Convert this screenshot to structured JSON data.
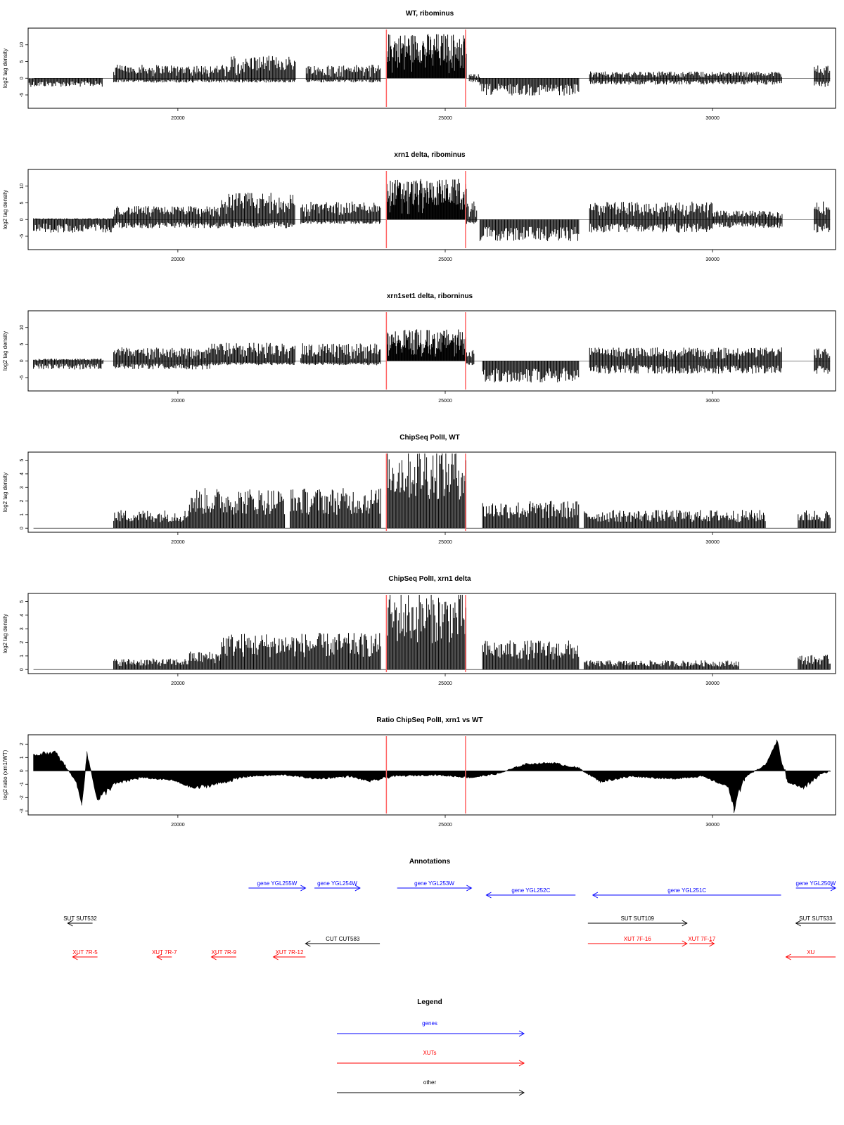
{
  "chart_data": [
    {
      "type": "bar",
      "title": "WT, ribominus",
      "ylabel": "log2 tag density",
      "xlim": [
        17200,
        32300
      ],
      "ylim": [
        -9,
        15
      ],
      "yticks": [
        -5,
        0,
        5,
        10
      ],
      "xticks": [
        20000,
        25000,
        30000
      ],
      "markers": [
        23900,
        25380
      ],
      "segments": [
        {
          "from": 17200,
          "to": 18600,
          "pos": 0,
          "neg": 2
        },
        {
          "from": 18800,
          "to": 21000,
          "pos": 3,
          "neg": 1
        },
        {
          "from": 21000,
          "to": 22200,
          "pos": 5,
          "neg": 1
        },
        {
          "from": 22400,
          "to": 23800,
          "pos": 3,
          "neg": 1
        },
        {
          "from": 23900,
          "to": 25400,
          "pos": 10,
          "neg": 0
        },
        {
          "from": 25450,
          "to": 25650,
          "pos": 1,
          "neg": 1
        },
        {
          "from": 25650,
          "to": 27500,
          "pos": 0,
          "neg": 4
        },
        {
          "from": 27700,
          "to": 31300,
          "pos": 1.5,
          "neg": 1.5
        },
        {
          "from": 31900,
          "to": 32200,
          "pos": 3,
          "neg": 2
        }
      ]
    },
    {
      "type": "bar",
      "title": "xrn1 delta, ribominus",
      "ylabel": "log2 tag density",
      "xlim": [
        17200,
        32300
      ],
      "ylim": [
        -9,
        15
      ],
      "yticks": [
        -5,
        0,
        5,
        10
      ],
      "xticks": [
        20000,
        25000,
        30000
      ],
      "markers": [
        23900,
        25380
      ],
      "segments": [
        {
          "from": 17300,
          "to": 18800,
          "pos": 0.3,
          "neg": 3
        },
        {
          "from": 18800,
          "to": 20800,
          "pos": 3,
          "neg": 2
        },
        {
          "from": 20800,
          "to": 22200,
          "pos": 6,
          "neg": 2
        },
        {
          "from": 22300,
          "to": 23800,
          "pos": 4,
          "neg": 1
        },
        {
          "from": 23900,
          "to": 25400,
          "pos": 9,
          "neg": 0
        },
        {
          "from": 25400,
          "to": 25600,
          "pos": 4,
          "neg": 1
        },
        {
          "from": 25650,
          "to": 27500,
          "pos": 0,
          "neg": 5
        },
        {
          "from": 27700,
          "to": 30000,
          "pos": 4,
          "neg": 3
        },
        {
          "from": 30000,
          "to": 31300,
          "pos": 2,
          "neg": 2
        },
        {
          "from": 31900,
          "to": 32200,
          "pos": 4,
          "neg": 3
        }
      ]
    },
    {
      "type": "bar",
      "title": "xrn1set1 delta, riborninus",
      "ylabel": "log2 tag density",
      "xlim": [
        17200,
        32300
      ],
      "ylim": [
        -9,
        15
      ],
      "yticks": [
        -5,
        0,
        5,
        10
      ],
      "xticks": [
        20000,
        25000,
        30000
      ],
      "markers": [
        23900,
        25380
      ],
      "segments": [
        {
          "from": 17300,
          "to": 18600,
          "pos": 0.5,
          "neg": 2
        },
        {
          "from": 18800,
          "to": 20600,
          "pos": 3,
          "neg": 2
        },
        {
          "from": 20600,
          "to": 22200,
          "pos": 4,
          "neg": 1
        },
        {
          "from": 22300,
          "to": 23800,
          "pos": 4,
          "neg": 1
        },
        {
          "from": 23900,
          "to": 25400,
          "pos": 7,
          "neg": 0
        },
        {
          "from": 25400,
          "to": 25550,
          "pos": 3,
          "neg": 1
        },
        {
          "from": 25700,
          "to": 27500,
          "pos": 0,
          "neg": 5
        },
        {
          "from": 27700,
          "to": 31300,
          "pos": 3,
          "neg": 3
        },
        {
          "from": 31900,
          "to": 32200,
          "pos": 3,
          "neg": 3
        }
      ]
    },
    {
      "type": "bar",
      "title": "ChipSeq PolII, WT",
      "ylabel": "log2 tag density",
      "xlim": [
        17200,
        32300
      ],
      "ylim": [
        -0.3,
        5.6
      ],
      "yticks": [
        0,
        1,
        2,
        3,
        4,
        5
      ],
      "xticks": [
        20000,
        25000,
        30000
      ],
      "markers": [
        23900,
        25380
      ],
      "segments": [
        {
          "from": 18800,
          "to": 20200,
          "pos": 1,
          "neg": 0
        },
        {
          "from": 20200,
          "to": 22000,
          "pos": 2.2,
          "neg": 0
        },
        {
          "from": 22100,
          "to": 23800,
          "pos": 2.2,
          "neg": 0
        },
        {
          "from": 23900,
          "to": 25400,
          "pos": 4.6,
          "neg": 0
        },
        {
          "from": 25700,
          "to": 27500,
          "pos": 1.5,
          "neg": 0
        },
        {
          "from": 27600,
          "to": 31000,
          "pos": 1,
          "neg": 0
        },
        {
          "from": 31600,
          "to": 32200,
          "pos": 1,
          "neg": 0
        }
      ]
    },
    {
      "type": "bar",
      "title": "ChipSeq PolII, xrn1 delta",
      "ylabel": "log2 tag density",
      "xlim": [
        17200,
        32300
      ],
      "ylim": [
        -0.3,
        5.6
      ],
      "yticks": [
        0,
        1,
        2,
        3,
        4,
        5
      ],
      "xticks": [
        20000,
        25000,
        30000
      ],
      "markers": [
        23900,
        25380
      ],
      "segments": [
        {
          "from": 18800,
          "to": 20200,
          "pos": 0.6,
          "neg": 0
        },
        {
          "from": 20200,
          "to": 20800,
          "pos": 1,
          "neg": 0
        },
        {
          "from": 20800,
          "to": 22200,
          "pos": 2,
          "neg": 0
        },
        {
          "from": 22200,
          "to": 23800,
          "pos": 2,
          "neg": 0
        },
        {
          "from": 23900,
          "to": 25400,
          "pos": 4.3,
          "neg": 0
        },
        {
          "from": 25700,
          "to": 27500,
          "pos": 1.6,
          "neg": 0
        },
        {
          "from": 27600,
          "to": 30500,
          "pos": 0.5,
          "neg": 0
        },
        {
          "from": 31600,
          "to": 32200,
          "pos": 0.8,
          "neg": 0
        }
      ]
    },
    {
      "type": "bar",
      "title": "Ratio ChipSeq PolII, xrn1 vs WT",
      "ylabel": "log2 ratio (xrn1/WT)",
      "xlim": [
        17200,
        32300
      ],
      "ylim": [
        -3.3,
        2.7
      ],
      "yticks": [
        -3,
        -2,
        -1,
        0,
        1,
        2
      ],
      "xticks": [
        20000,
        25000,
        30000
      ],
      "markers": [
        23900,
        25380
      ],
      "ratio_points": [
        [
          17300,
          1.2
        ],
        [
          17700,
          1.4
        ],
        [
          17900,
          0.3
        ],
        [
          18100,
          -0.8
        ],
        [
          18200,
          -2.5
        ],
        [
          18300,
          1.3
        ],
        [
          18500,
          -2.2
        ],
        [
          18800,
          -1.0
        ],
        [
          19300,
          -0.5
        ],
        [
          19900,
          -0.7
        ],
        [
          20300,
          -1.3
        ],
        [
          20700,
          -1.0
        ],
        [
          21300,
          -0.4
        ],
        [
          22000,
          -0.3
        ],
        [
          22600,
          -0.6
        ],
        [
          23200,
          -0.4
        ],
        [
          23600,
          -0.8
        ],
        [
          24000,
          -0.4
        ],
        [
          24800,
          -0.3
        ],
        [
          25500,
          -0.5
        ],
        [
          26000,
          -0.2
        ],
        [
          26500,
          0.5
        ],
        [
          27000,
          0.6
        ],
        [
          27500,
          0.2
        ],
        [
          27900,
          -0.8
        ],
        [
          28500,
          -0.4
        ],
        [
          29200,
          -0.6
        ],
        [
          29800,
          -0.4
        ],
        [
          30300,
          -1.2
        ],
        [
          30400,
          -2.8
        ],
        [
          30600,
          -0.5
        ],
        [
          31000,
          0.5
        ],
        [
          31200,
          2.2
        ],
        [
          31400,
          -0.8
        ],
        [
          31700,
          -1.3
        ],
        [
          32000,
          -0.3
        ],
        [
          32200,
          0
        ]
      ]
    }
  ],
  "annotations": {
    "title": "Annotations",
    "xlim": [
      17200,
      32300
    ],
    "features": [
      {
        "label": "gene YGL255W",
        "from": 18450,
        "to": 19600,
        "row": 1,
        "type": "gene",
        "strand": "+"
      },
      {
        "label": "gene YGL254W",
        "from": 19780,
        "to": 20700,
        "row": 1,
        "type": "gene",
        "strand": "+"
      },
      {
        "label": "gene YGL253W",
        "from": 21450,
        "to": 22950,
        "row": 1,
        "type": "gene",
        "strand": "+"
      },
      {
        "label": "gene YGL252C",
        "from": 23250,
        "to": 25050,
        "row": 2,
        "type": "gene",
        "strand": "-"
      },
      {
        "label": "gene YGL251C",
        "from": 25400,
        "to": 29200,
        "row": 2,
        "type": "gene",
        "strand": "-"
      },
      {
        "label": "gene YGL250W",
        "from": 29500,
        "to": 30300,
        "row": 1,
        "type": "gene",
        "strand": "+"
      },
      {
        "label": "SUT SUT532",
        "from": 14800,
        "to": 15300,
        "row": 3,
        "type": "other",
        "strand": "-"
      },
      {
        "label": "SUT SUT109",
        "from": 25300,
        "to": 27300,
        "row": 3,
        "type": "other",
        "strand": "+"
      },
      {
        "label": "SUT SUT533",
        "from": 29500,
        "to": 30300,
        "row": 3,
        "type": "other",
        "strand": "-"
      },
      {
        "label": "CUT CUT583",
        "from": 19600,
        "to": 21100,
        "row": 4,
        "type": "other",
        "strand": "-"
      },
      {
        "label": "XUT 7R-5",
        "from": 14900,
        "to": 15400,
        "row": 5,
        "type": "xut",
        "strand": "-"
      },
      {
        "label": "XUT 7R-7",
        "from": 16600,
        "to": 16900,
        "row": 5,
        "type": "xut",
        "strand": "-"
      },
      {
        "label": "XUT 7R-9",
        "from": 17700,
        "to": 18200,
        "row": 5,
        "type": "xut",
        "strand": "-"
      },
      {
        "label": "XUT 7R-12",
        "from": 18950,
        "to": 19600,
        "row": 5,
        "type": "xut",
        "strand": "-"
      },
      {
        "label": "XUT 7F-16",
        "from": 25300,
        "to": 27300,
        "row": 4,
        "type": "xut",
        "strand": "+"
      },
      {
        "label": "XUT 7F-17",
        "from": 27350,
        "to": 27850,
        "row": 4,
        "type": "xut",
        "strand": "+"
      },
      {
        "label": "XU",
        "from": 29300,
        "to": 30300,
        "row": 5,
        "type": "xut",
        "strand": "-"
      }
    ]
  },
  "legend": {
    "title": "Legend",
    "items": [
      {
        "label": "genes",
        "color": "#0000ff"
      },
      {
        "label": "XUTs",
        "color": "#ff0000"
      },
      {
        "label": "other",
        "color": "#000000"
      }
    ]
  },
  "colors": {
    "marker": "#ff6666",
    "gene": "#0000ff",
    "xut": "#ff0000",
    "other": "#000000",
    "data": "#000000"
  }
}
